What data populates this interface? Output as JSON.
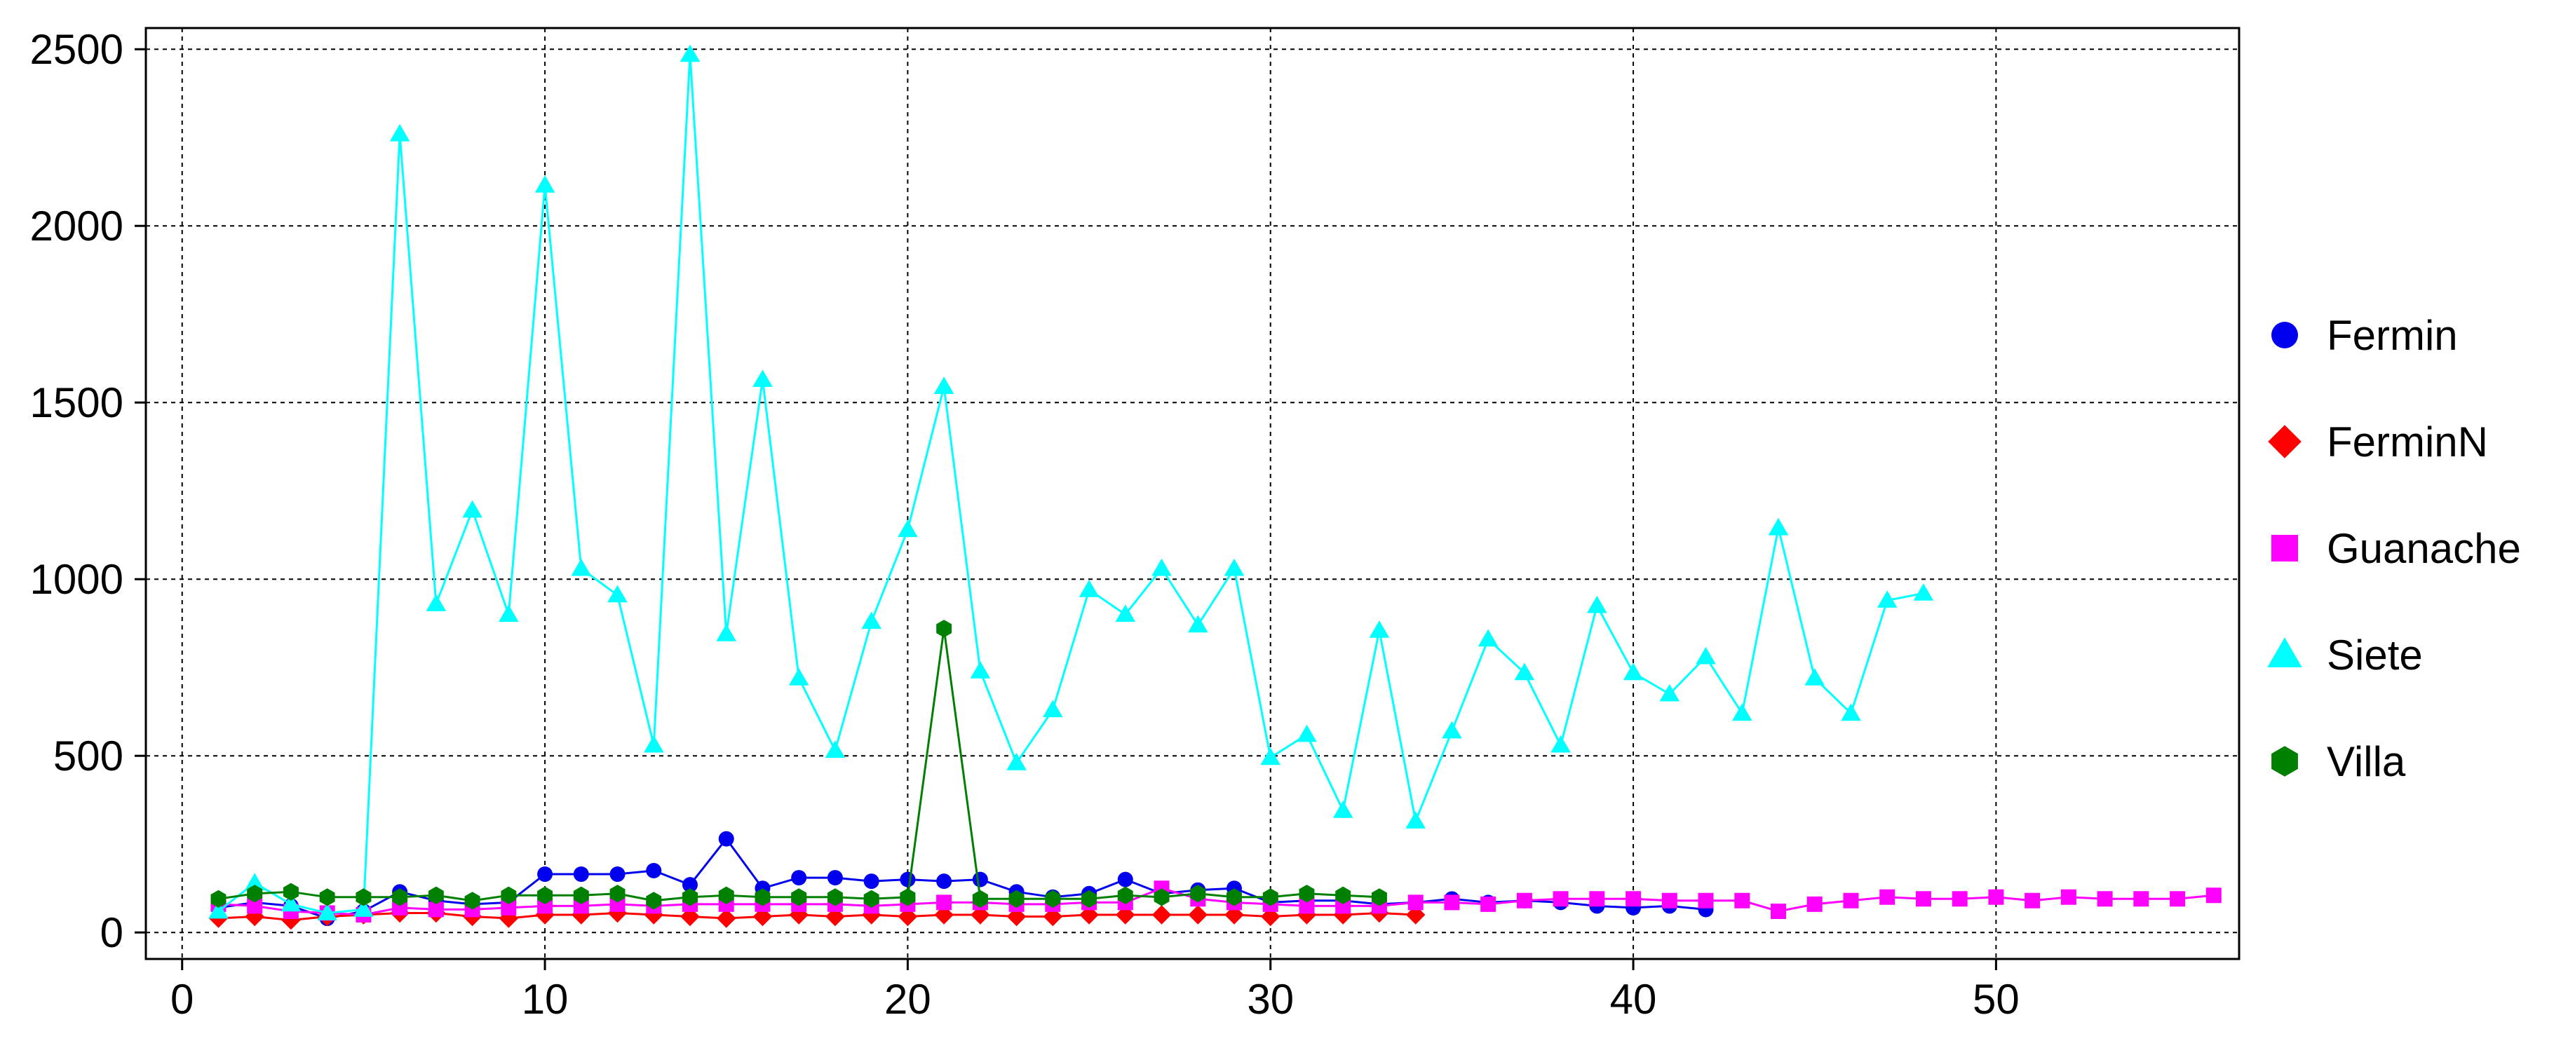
{
  "chart_data": {
    "type": "line",
    "title": "",
    "xlabel": "",
    "ylabel": "",
    "xlim": [
      -1,
      56.7
    ],
    "ylim": [
      -75,
      2560
    ],
    "x_ticks": [
      0,
      10,
      20,
      30,
      40,
      50
    ],
    "y_ticks": [
      0,
      500,
      1000,
      1500,
      2000,
      2500
    ],
    "grid": true,
    "legend_position": "right",
    "series": [
      {
        "name": "Fermin",
        "color": "#0000ee",
        "marker": "circle",
        "x": [
          1,
          2,
          3,
          4,
          5,
          6,
          7,
          8,
          9,
          10,
          11,
          12,
          13,
          14,
          15,
          16,
          17,
          18,
          19,
          20,
          21,
          22,
          23,
          24,
          25,
          26,
          27,
          28,
          29,
          30,
          31,
          32,
          33,
          34,
          35,
          36,
          37,
          38,
          39,
          40,
          41,
          42
        ],
        "values": [
          70,
          85,
          75,
          40,
          60,
          115,
          90,
          80,
          85,
          165,
          165,
          165,
          175,
          135,
          265,
          125,
          155,
          155,
          145,
          150,
          145,
          150,
          115,
          100,
          110,
          150,
          110,
          120,
          125,
          85,
          90,
          90,
          80,
          85,
          95,
          85,
          90,
          85,
          75,
          70,
          75,
          65
        ]
      },
      {
        "name": "FerminN",
        "color": "#ff0000",
        "marker": "diamond",
        "x": [
          1,
          2,
          3,
          4,
          5,
          6,
          7,
          8,
          9,
          10,
          11,
          12,
          13,
          14,
          15,
          16,
          17,
          18,
          19,
          20,
          21,
          22,
          23,
          24,
          25,
          26,
          27,
          28,
          29,
          30,
          31,
          32,
          33,
          34
        ],
        "values": [
          40,
          45,
          35,
          45,
          50,
          55,
          55,
          45,
          40,
          50,
          50,
          55,
          50,
          45,
          40,
          45,
          50,
          45,
          50,
          45,
          50,
          50,
          45,
          45,
          50,
          50,
          50,
          50,
          50,
          45,
          50,
          50,
          55,
          50
        ]
      },
      {
        "name": "Guanache",
        "color": "#ff00ff",
        "marker": "square",
        "x": [
          1,
          2,
          3,
          4,
          5,
          6,
          7,
          8,
          9,
          10,
          11,
          12,
          13,
          14,
          15,
          16,
          17,
          18,
          19,
          20,
          21,
          22,
          23,
          24,
          25,
          26,
          27,
          28,
          29,
          30,
          31,
          32,
          33,
          34,
          35,
          36,
          37,
          38,
          39,
          40,
          41,
          42,
          43,
          44,
          45,
          46,
          47,
          48,
          49,
          50,
          51,
          52,
          53,
          54,
          55,
          56
        ],
        "values": [
          80,
          75,
          60,
          55,
          50,
          70,
          65,
          65,
          70,
          75,
          75,
          80,
          75,
          80,
          80,
          80,
          80,
          80,
          75,
          80,
          85,
          85,
          80,
          80,
          85,
          85,
          125,
          95,
          85,
          80,
          75,
          75,
          75,
          85,
          85,
          80,
          90,
          95,
          95,
          95,
          90,
          90,
          90,
          60,
          80,
          90,
          100,
          95,
          95,
          100,
          90,
          100,
          95,
          95,
          95,
          105
        ]
      },
      {
        "name": "Siete",
        "color": "#00ffff",
        "marker": "triangle",
        "x": [
          1,
          2,
          3,
          4,
          5,
          6,
          7,
          8,
          9,
          10,
          11,
          12,
          13,
          14,
          15,
          16,
          17,
          18,
          19,
          20,
          21,
          22,
          23,
          24,
          25,
          26,
          27,
          28,
          29,
          30,
          31,
          32,
          33,
          34,
          35,
          36,
          37,
          38,
          39,
          40,
          41,
          42,
          43,
          44,
          45,
          46,
          47,
          48
        ],
        "values": [
          60,
          140,
          80,
          55,
          65,
          2260,
          930,
          1195,
          900,
          2115,
          1030,
          955,
          530,
          2485,
          845,
          1565,
          720,
          515,
          880,
          1140,
          1545,
          740,
          480,
          630,
          970,
          900,
          1030,
          870,
          1030,
          495,
          560,
          345,
          855,
          315,
          570,
          830,
          735,
          530,
          925,
          735,
          675,
          780,
          620,
          1145,
          720,
          620,
          940,
          960
        ]
      },
      {
        "name": "Villa",
        "color": "#008000",
        "marker": "hexagon",
        "x": [
          1,
          2,
          3,
          4,
          5,
          6,
          7,
          8,
          9,
          10,
          11,
          12,
          13,
          14,
          15,
          16,
          17,
          18,
          19,
          20,
          21,
          22,
          23,
          24,
          25,
          26,
          27,
          28,
          29,
          30,
          31,
          32,
          33
        ],
        "values": [
          95,
          110,
          115,
          100,
          100,
          100,
          105,
          90,
          105,
          105,
          105,
          110,
          90,
          100,
          105,
          100,
          100,
          100,
          95,
          100,
          860,
          95,
          95,
          95,
          95,
          105,
          100,
          110,
          100,
          100,
          110,
          105,
          100
        ]
      }
    ]
  }
}
